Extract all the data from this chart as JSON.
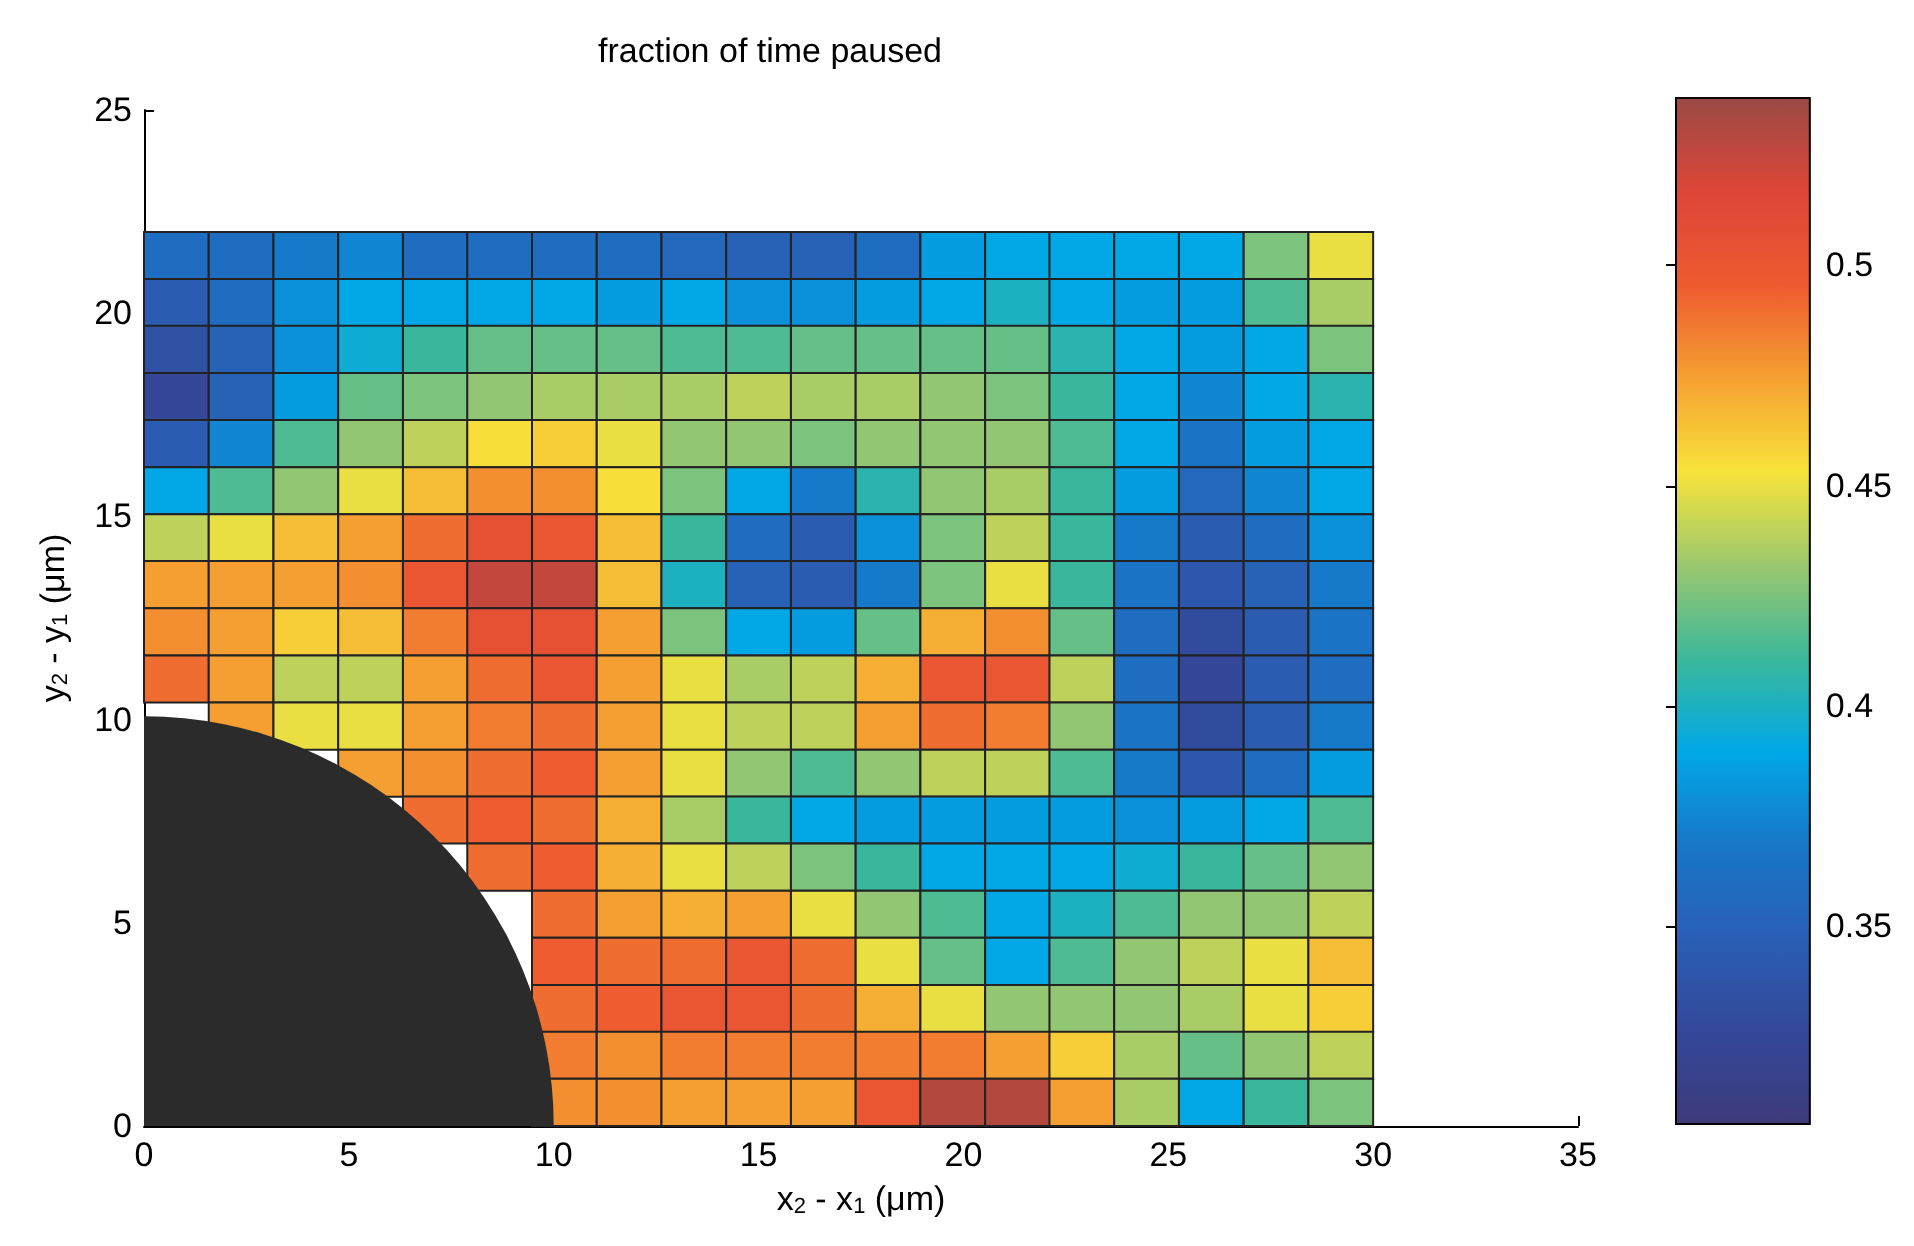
{
  "chart_data": {
    "type": "heatmap",
    "title": "fraction of time paused",
    "xlabel": "x$_{2}$ - x$_{1}$ (μm)",
    "ylabel": "y$_{2}$ - y$_{1}$ (μm)",
    "x": [
      0.79,
      2.37,
      3.95,
      5.53,
      7.11,
      8.68,
      10.26,
      11.84,
      13.42,
      15.0,
      16.58,
      18.16,
      19.74,
      21.32,
      22.89,
      24.47,
      26.05,
      27.63,
      29.21
    ],
    "y": [
      21.42,
      20.26,
      19.11,
      17.95,
      16.79,
      15.63,
      14.47,
      13.32,
      12.16,
      11.0,
      9.84,
      8.68,
      7.53,
      6.37,
      5.21,
      4.05,
      2.89,
      1.74,
      0.58
    ],
    "cells": [
      [
        0.36,
        0.36,
        0.37,
        0.375,
        0.36,
        0.36,
        0.36,
        0.36,
        0.355,
        0.35,
        0.35,
        0.36,
        0.385,
        0.39,
        0.39,
        0.39,
        0.39,
        0.425,
        0.45
      ],
      [
        0.345,
        0.36,
        0.38,
        0.39,
        0.39,
        0.39,
        0.39,
        0.385,
        0.39,
        0.38,
        0.38,
        0.385,
        0.39,
        0.4,
        0.39,
        0.385,
        0.385,
        0.415,
        0.435
      ],
      [
        0.335,
        0.35,
        0.38,
        0.395,
        0.41,
        0.42,
        0.42,
        0.42,
        0.415,
        0.415,
        0.42,
        0.42,
        0.42,
        0.42,
        0.405,
        0.39,
        0.385,
        0.39,
        0.425
      ],
      [
        0.325,
        0.35,
        0.385,
        0.42,
        0.425,
        0.43,
        0.435,
        0.435,
        0.435,
        0.44,
        0.435,
        0.435,
        0.43,
        0.425,
        0.41,
        0.39,
        0.375,
        0.39,
        0.405
      ],
      [
        0.345,
        0.375,
        0.415,
        0.43,
        0.44,
        0.455,
        0.46,
        0.45,
        0.43,
        0.43,
        0.425,
        0.43,
        0.43,
        0.43,
        0.415,
        0.39,
        0.365,
        0.385,
        0.39
      ],
      [
        0.39,
        0.415,
        0.43,
        0.45,
        0.465,
        0.48,
        0.48,
        0.455,
        0.425,
        0.39,
        0.37,
        0.405,
        0.43,
        0.435,
        0.41,
        0.385,
        0.355,
        0.375,
        0.39
      ],
      [
        0.44,
        0.45,
        0.465,
        0.475,
        0.49,
        0.505,
        0.5,
        0.465,
        0.41,
        0.36,
        0.345,
        0.38,
        0.425,
        0.44,
        0.41,
        0.37,
        0.345,
        0.36,
        0.38
      ],
      [
        0.475,
        0.475,
        0.475,
        0.48,
        0.5,
        0.525,
        0.525,
        0.465,
        0.4,
        0.35,
        0.345,
        0.37,
        0.425,
        0.45,
        0.41,
        0.365,
        0.34,
        0.35,
        0.37
      ],
      [
        0.48,
        0.475,
        0.46,
        0.465,
        0.485,
        0.505,
        0.505,
        0.475,
        0.425,
        0.39,
        0.385,
        0.42,
        0.47,
        0.48,
        0.42,
        0.36,
        0.33,
        0.345,
        0.365
      ],
      [
        0.49,
        0.475,
        0.44,
        0.44,
        0.475,
        0.49,
        0.5,
        0.475,
        0.45,
        0.435,
        0.44,
        0.47,
        0.5,
        0.5,
        0.44,
        0.36,
        0.325,
        0.345,
        0.36
      ],
      [
        null,
        0.475,
        0.45,
        0.45,
        0.475,
        0.485,
        0.49,
        0.475,
        0.45,
        0.44,
        0.44,
        0.475,
        0.49,
        0.485,
        0.43,
        0.365,
        0.33,
        0.345,
        0.37
      ],
      [
        null,
        null,
        null,
        0.475,
        0.48,
        0.49,
        0.495,
        0.475,
        0.45,
        0.43,
        0.415,
        0.43,
        0.44,
        0.44,
        0.415,
        0.37,
        0.34,
        0.36,
        0.385
      ],
      [
        null,
        null,
        null,
        null,
        0.49,
        0.495,
        0.49,
        0.47,
        0.435,
        0.41,
        0.39,
        0.385,
        0.385,
        0.385,
        0.385,
        0.38,
        0.385,
        0.39,
        0.415
      ],
      [
        null,
        null,
        null,
        null,
        null,
        0.49,
        0.495,
        0.47,
        0.45,
        0.44,
        0.425,
        0.41,
        0.39,
        0.39,
        0.39,
        0.395,
        0.41,
        0.42,
        0.43
      ],
      [
        null,
        null,
        null,
        null,
        null,
        null,
        0.49,
        0.475,
        0.47,
        0.475,
        0.45,
        0.43,
        0.415,
        0.39,
        0.4,
        0.415,
        0.43,
        0.43,
        0.44
      ],
      [
        null,
        null,
        null,
        null,
        null,
        null,
        0.495,
        0.49,
        0.49,
        0.5,
        0.49,
        0.45,
        0.42,
        0.39,
        0.415,
        0.43,
        0.44,
        0.45,
        0.465
      ],
      [
        null,
        null,
        null,
        null,
        null,
        null,
        0.49,
        0.495,
        0.5,
        0.5,
        0.49,
        0.47,
        0.45,
        0.43,
        0.43,
        0.43,
        0.435,
        0.45,
        0.46
      ],
      [
        null,
        null,
        null,
        null,
        null,
        null,
        0.485,
        0.48,
        0.485,
        0.485,
        0.485,
        0.485,
        0.485,
        0.475,
        0.46,
        0.435,
        0.42,
        0.43,
        0.44
      ],
      [
        null,
        null,
        null,
        null,
        null,
        null,
        0.48,
        0.48,
        0.475,
        0.475,
        0.475,
        0.5,
        0.53,
        0.53,
        0.475,
        0.435,
        0.39,
        0.41,
        0.425
      ]
    ],
    "xlim": [
      0,
      35
    ],
    "xticks": [
      0,
      5,
      10,
      15,
      20,
      25,
      30,
      35
    ],
    "ylim": [
      0,
      25
    ],
    "yticks": [
      0,
      5,
      10,
      15,
      20,
      25
    ],
    "clim": [
      0.305,
      0.538
    ],
    "cticks": [
      0.35,
      0.4,
      0.45,
      0.5
    ]
  }
}
